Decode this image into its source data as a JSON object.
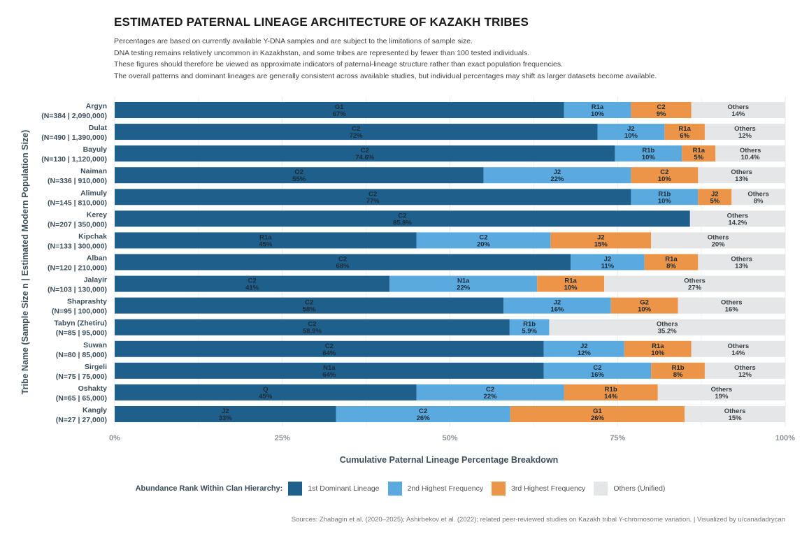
{
  "chart_data": {
    "type": "bar",
    "orientation": "horizontal",
    "stacked": true,
    "title": "ESTIMATED PATERNAL LINEAGE ARCHITECTURE OF KAZAKH TRIBES",
    "subtitle": [
      "Percentages are based on currently available Y-DNA samples and are subject to the limitations of sample size.",
      "DNA testing remains relatively uncommon in Kazakhstan, and some tribes are represented by fewer than 100 tested individuals.",
      "These figures should therefore be viewed as approximate indicators of paternal-lineage structure rather than exact population frequencies.",
      "The overall patterns and dominant lineages are generally consistent across available studies, but individual percentages may shift as larger datasets become available."
    ],
    "xlabel": "Cumulative Paternal Lineage Percentage Breakdown",
    "ylabel": "Tribe Name (Sample Size n | Estimated Modern Population Size)",
    "xlim": [
      0,
      100
    ],
    "x_ticks": [
      "0%",
      "25%",
      "50%",
      "75%",
      "100%"
    ],
    "grid": true,
    "legend_position": "bottom",
    "legend_title": "Abundance Rank Within Clan Hierarchy:",
    "legend": [
      {
        "label": "1st Dominant Lineage",
        "color": "#1f5f8b"
      },
      {
        "label": "2nd Highest Frequency",
        "color": "#5aaae0"
      },
      {
        "label": "3rd Highest Frequency",
        "color": "#ec9447"
      },
      {
        "label": "Others (Unified)",
        "color": "#e4e6e7"
      }
    ],
    "source": "Sources: Zhabagin et al. (2020–2025); Ashirbekov et al. (2022); related peer-reviewed studies on Kazakh tribal Y-chromosome variation. | Visualized by u/canadadrycan",
    "tribes": [
      {
        "name": "Argyn",
        "info": "(N=384 | 2,090,000)",
        "segments": [
          {
            "haplo": "G1",
            "value": 67,
            "label": "67%"
          },
          {
            "haplo": "R1a",
            "value": 10,
            "label": "10%"
          },
          {
            "haplo": "C2",
            "value": 9,
            "label": "9%"
          },
          {
            "haplo": "Others",
            "value": 14,
            "label": "14%"
          }
        ]
      },
      {
        "name": "Dulat",
        "info": "(N=490 | 1,390,000)",
        "segments": [
          {
            "haplo": "C2",
            "value": 72,
            "label": "72%"
          },
          {
            "haplo": "J2",
            "value": 10,
            "label": "10%"
          },
          {
            "haplo": "R1a",
            "value": 6,
            "label": "6%"
          },
          {
            "haplo": "Others",
            "value": 12,
            "label": "12%"
          }
        ]
      },
      {
        "name": "Bayuly",
        "info": "(N=130 | 1,120,000)",
        "segments": [
          {
            "haplo": "C2",
            "value": 74.6,
            "label": "74.6%"
          },
          {
            "haplo": "R1b",
            "value": 10,
            "label": "10%"
          },
          {
            "haplo": "R1a",
            "value": 5,
            "label": "5%"
          },
          {
            "haplo": "Others",
            "value": 10.4,
            "label": "10.4%"
          }
        ]
      },
      {
        "name": "Naiman",
        "info": "(N=336 | 910,000)",
        "segments": [
          {
            "haplo": "O2",
            "value": 55,
            "label": "55%"
          },
          {
            "haplo": "J2",
            "value": 22,
            "label": "22%"
          },
          {
            "haplo": "C2",
            "value": 10,
            "label": "10%"
          },
          {
            "haplo": "Others",
            "value": 13,
            "label": "13%"
          }
        ]
      },
      {
        "name": "Alimuly",
        "info": "(N=145 | 810,000)",
        "segments": [
          {
            "haplo": "C2",
            "value": 77,
            "label": "77%"
          },
          {
            "haplo": "R1b",
            "value": 10,
            "label": "10%"
          },
          {
            "haplo": "J2",
            "value": 5,
            "label": "5%"
          },
          {
            "haplo": "Others",
            "value": 8,
            "label": "8%"
          }
        ]
      },
      {
        "name": "Kerey",
        "info": "(N=207 | 350,000)",
        "segments": [
          {
            "haplo": "C2",
            "value": 85.8,
            "label": "85.8%"
          },
          {
            "haplo": "Others",
            "value": 14.2,
            "label": "14.2%"
          }
        ]
      },
      {
        "name": "Kipchak",
        "info": "(N=133 | 300,000)",
        "segments": [
          {
            "haplo": "R1a",
            "value": 45,
            "label": "45%"
          },
          {
            "haplo": "C2",
            "value": 20,
            "label": "20%"
          },
          {
            "haplo": "J2",
            "value": 15,
            "label": "15%"
          },
          {
            "haplo": "Others",
            "value": 20,
            "label": "20%"
          }
        ]
      },
      {
        "name": "Alban",
        "info": "(N=120 | 210,000)",
        "segments": [
          {
            "haplo": "C2",
            "value": 68,
            "label": "68%"
          },
          {
            "haplo": "J2",
            "value": 11,
            "label": "11%"
          },
          {
            "haplo": "R1a",
            "value": 8,
            "label": "8%"
          },
          {
            "haplo": "Others",
            "value": 13,
            "label": "13%"
          }
        ]
      },
      {
        "name": "Jalayir",
        "info": "(N=103 | 130,000)",
        "segments": [
          {
            "haplo": "C2",
            "value": 41,
            "label": "41%"
          },
          {
            "haplo": "N1a",
            "value": 22,
            "label": "22%"
          },
          {
            "haplo": "R1a",
            "value": 10,
            "label": "10%"
          },
          {
            "haplo": "Others",
            "value": 27,
            "label": "27%"
          }
        ]
      },
      {
        "name": "Shaprashty",
        "info": "(N=95 | 100,000)",
        "segments": [
          {
            "haplo": "C2",
            "value": 58,
            "label": "58%"
          },
          {
            "haplo": "J2",
            "value": 16,
            "label": "16%"
          },
          {
            "haplo": "G2",
            "value": 10,
            "label": "10%"
          },
          {
            "haplo": "Others",
            "value": 16,
            "label": "16%"
          }
        ]
      },
      {
        "name": "Tabyn (Zhetiru)",
        "info": "(N=85 | 95,000)",
        "segments": [
          {
            "haplo": "C2",
            "value": 58.9,
            "label": "58.9%"
          },
          {
            "haplo": "R1b",
            "value": 5.9,
            "label": "5.9%"
          },
          {
            "haplo": "Others",
            "value": 35.2,
            "label": "35.2%"
          }
        ]
      },
      {
        "name": "Suwan",
        "info": "(N=80 | 85,000)",
        "segments": [
          {
            "haplo": "C2",
            "value": 64,
            "label": "64%"
          },
          {
            "haplo": "J2",
            "value": 12,
            "label": "12%"
          },
          {
            "haplo": "R1a",
            "value": 10,
            "label": "10%"
          },
          {
            "haplo": "Others",
            "value": 14,
            "label": "14%"
          }
        ]
      },
      {
        "name": "Sirgeli",
        "info": "(N=75 | 75,000)",
        "segments": [
          {
            "haplo": "N1a",
            "value": 64,
            "label": "64%"
          },
          {
            "haplo": "C2",
            "value": 16,
            "label": "16%"
          },
          {
            "haplo": "R1b",
            "value": 8,
            "label": "8%"
          },
          {
            "haplo": "Others",
            "value": 12,
            "label": "12%"
          }
        ]
      },
      {
        "name": "Oshakty",
        "info": "(N=65 | 65,000)",
        "segments": [
          {
            "haplo": "Q",
            "value": 45,
            "label": "45%"
          },
          {
            "haplo": "C2",
            "value": 22,
            "label": "22%"
          },
          {
            "haplo": "R1b",
            "value": 14,
            "label": "14%"
          },
          {
            "haplo": "Others",
            "value": 19,
            "label": "19%"
          }
        ]
      },
      {
        "name": "Kangly",
        "info": "(N=27 | 27,000)",
        "segments": [
          {
            "haplo": "J2",
            "value": 33,
            "label": "33%"
          },
          {
            "haplo": "C2",
            "value": 26,
            "label": "26%"
          },
          {
            "haplo": "G1",
            "value": 26,
            "label": "26%"
          },
          {
            "haplo": "Others",
            "value": 15,
            "label": "15%"
          }
        ]
      }
    ]
  }
}
